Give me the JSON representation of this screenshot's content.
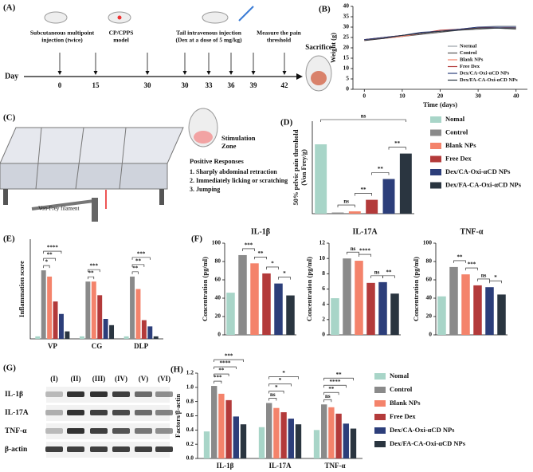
{
  "panels": {
    "A": {
      "label": "(A)",
      "day_label": "Day",
      "days": [
        0,
        15,
        30,
        30,
        33,
        36,
        39,
        42
      ],
      "steps": [
        [
          "Subcutaneous multipoint",
          "injection (twice)"
        ],
        [
          "CP/CPPS",
          "model"
        ],
        [
          "Tail intravenous injection",
          "(Dex at a dose of 5 mg/kg)"
        ],
        [
          "Measure the pain",
          "threshold"
        ]
      ],
      "end": "Sacrifice"
    },
    "C": {
      "label": "(C)",
      "zone": [
        "Stimulation",
        "Zone"
      ],
      "responses_title": "Positive Responses",
      "responses": [
        "1. Sharply abdominal retraction",
        "2. Immediately licking or scratching",
        "3. Jumping"
      ],
      "filament": "Von-Frey filament"
    },
    "G": {
      "label": "(G)",
      "lanes": [
        "(I)",
        "(II)",
        "(III)",
        "(IV)",
        "(V)",
        "(VI)"
      ],
      "rows": [
        "IL-1β",
        "IL-17A",
        "TNF-α",
        "β-actin"
      ]
    }
  },
  "chart_data": [
    {
      "panel": "(B)",
      "type": "line",
      "ylabel": [
        "Weight (g)"
      ],
      "xlabel": "Time (days)",
      "x": [
        0,
        5,
        10,
        15,
        20,
        25,
        30,
        35,
        40
      ],
      "xlim": [
        -3,
        43
      ],
      "xticks": [
        0,
        10,
        20,
        30,
        40
      ],
      "ylim": [
        0,
        40
      ],
      "yticks": [
        0,
        5,
        10,
        15,
        20,
        25,
        30,
        35,
        40
      ],
      "legend": "lower right",
      "series": [
        {
          "name": "Normal",
          "color": "#9aa0a6",
          "values": [
            24,
            25,
            26,
            27,
            28,
            29,
            30,
            30.5,
            30.5
          ]
        },
        {
          "name": "Control",
          "color": "#555555",
          "values": [
            24,
            24.5,
            25.5,
            26.5,
            27.5,
            28.5,
            29,
            29.5,
            29
          ]
        },
        {
          "name": "Blank NPs",
          "color": "#f4836b",
          "values": [
            23.5,
            24.5,
            25.5,
            27,
            28,
            29,
            29.5,
            30,
            29.5
          ]
        },
        {
          "name": "Free Dex",
          "color": "#b33a3a",
          "values": [
            24,
            25,
            26,
            27,
            28.5,
            29,
            29.5,
            30,
            30
          ]
        },
        {
          "name": "Dex/CA-Oxi-αCD NPs",
          "color": "#2c3e7a",
          "values": [
            24,
            25,
            26,
            27.5,
            28,
            29,
            30,
            30,
            30
          ]
        },
        {
          "name": "Dex/FA-CA-Oxi-αCD NPs",
          "color": "#2a3540",
          "values": [
            23.5,
            24.5,
            26,
            27,
            28,
            28.5,
            29.5,
            29.5,
            29.5
          ]
        }
      ]
    },
    {
      "panel": "(D)",
      "type": "bar",
      "ylabel": [
        "50% pelvic pain threshold",
        "(Von Frey/g)"
      ],
      "ylim": [
        0,
        4
      ],
      "legend": "right",
      "categories": [
        "Nomal",
        "Control",
        "Blank NPs",
        "Free Dex",
        "Dex/CA-Oxi-αCD NPs",
        "Dex/FA-CA-Oxi-αCD NPs"
      ],
      "colors": [
        "#a8d5c8",
        "#8a8a8a",
        "#f4836b",
        "#b33a3a",
        "#2c3e7a",
        "#2a3540"
      ],
      "values": [
        3.0,
        0.05,
        0.1,
        0.6,
        1.5,
        2.6
      ],
      "annotations": [
        "ns",
        "ns",
        "**",
        "**",
        "**"
      ]
    },
    {
      "panel": "(E)",
      "type": "grouped_bar",
      "ylabel": [
        "Inflammation score"
      ],
      "ylim": [
        0,
        4
      ],
      "categories": [
        "VP",
        "CG",
        "DLP"
      ],
      "series": [
        {
          "color": "#a8d5c8",
          "values": [
            0.1,
            0.1,
            0.1
          ]
        },
        {
          "color": "#8a8a8a",
          "values": [
            2.75,
            2.3,
            2.5
          ]
        },
        {
          "color": "#f4836b",
          "values": [
            2.5,
            2.3,
            2.0
          ]
        },
        {
          "color": "#b33a3a",
          "values": [
            1.5,
            1.75,
            0.75
          ]
        },
        {
          "color": "#2c3e7a",
          "values": [
            1.0,
            0.8,
            0.5
          ]
        },
        {
          "color": "#2a3540",
          "values": [
            0.3,
            0.55,
            0.1
          ]
        }
      ],
      "annotations": [
        [
          "*",
          "**",
          "****"
        ],
        [
          "**",
          "***"
        ],
        [
          "**",
          "**",
          "***"
        ]
      ]
    },
    {
      "panel": "(F)",
      "type": "bar",
      "title": "IL-1β",
      "ylabel": [
        "Concentration (pg/ml)"
      ],
      "ylim": [
        0,
        100
      ],
      "yticks": [
        0,
        20,
        40,
        60,
        80,
        100
      ],
      "colors": [
        "#a8d5c8",
        "#8a8a8a",
        "#f4836b",
        "#b33a3a",
        "#2c3e7a",
        "#2a3540"
      ],
      "values": [
        46,
        87,
        78,
        67,
        56,
        43
      ],
      "annotations": [
        "***",
        "**",
        "*",
        "*"
      ]
    },
    {
      "type": "bar",
      "title": "IL-17A",
      "ylabel": [
        "Concentration (pg/ml)"
      ],
      "ylim": [
        0,
        12
      ],
      "yticks": [
        0,
        2,
        4,
        6,
        8,
        10,
        12
      ],
      "colors": [
        "#a8d5c8",
        "#8a8a8a",
        "#f4836b",
        "#b33a3a",
        "#2c3e7a",
        "#2a3540"
      ],
      "values": [
        4.8,
        10,
        9.7,
        6.8,
        6.9,
        5.4
      ],
      "annotations": [
        "ns",
        "****",
        "ns",
        "**"
      ]
    },
    {
      "type": "bar",
      "title": "TNF-α",
      "ylabel": [
        "Concentration (pg/ml)"
      ],
      "ylim": [
        0,
        100
      ],
      "yticks": [
        0,
        20,
        40,
        60,
        80,
        100
      ],
      "colors": [
        "#a8d5c8",
        "#8a8a8a",
        "#f4836b",
        "#b33a3a",
        "#2c3e7a",
        "#2a3540"
      ],
      "values": [
        42,
        74,
        66,
        54,
        52,
        44
      ],
      "annotations": [
        "**",
        "***",
        "ns",
        "*"
      ]
    },
    {
      "panel": "(H)",
      "type": "grouped_bar",
      "ylabel": [
        "Factors/β-actin"
      ],
      "ylim": [
        0,
        1.2
      ],
      "yticks": [
        {
          "value": 0,
          "label": "0.0"
        },
        0.2,
        0.4,
        0.6,
        0.8,
        {
          "value": 1,
          "label": "1.0"
        },
        1.2
      ],
      "legend": "right",
      "categories": [
        "IL-1β",
        "IL-17A",
        "TNF-α"
      ],
      "series": [
        {
          "name": "Nomal",
          "color": "#a8d5c8",
          "values": [
            0.38,
            0.44,
            0.4
          ]
        },
        {
          "name": "Control",
          "color": "#8a8a8a",
          "values": [
            1.02,
            0.78,
            0.76
          ]
        },
        {
          "name": "Blank NPs",
          "color": "#f4836b",
          "values": [
            0.91,
            0.71,
            0.72
          ]
        },
        {
          "name": "Free Dex",
          "color": "#b33a3a",
          "values": [
            0.82,
            0.65,
            0.63
          ]
        },
        {
          "name": "Dex/CA-Oxi-αCD NPs",
          "color": "#2c3e7a",
          "values": [
            0.59,
            0.56,
            0.49
          ]
        },
        {
          "name": "Dex/FA-CA-Oxi-αCD NPs",
          "color": "#2a3540",
          "values": [
            0.48,
            0.48,
            0.42
          ]
        }
      ],
      "annotations": [
        [
          "***",
          "**",
          "****",
          "***"
        ],
        [
          "ns",
          "*",
          "*",
          "*"
        ],
        [
          "ns",
          "**",
          "****",
          "**"
        ]
      ]
    }
  ]
}
